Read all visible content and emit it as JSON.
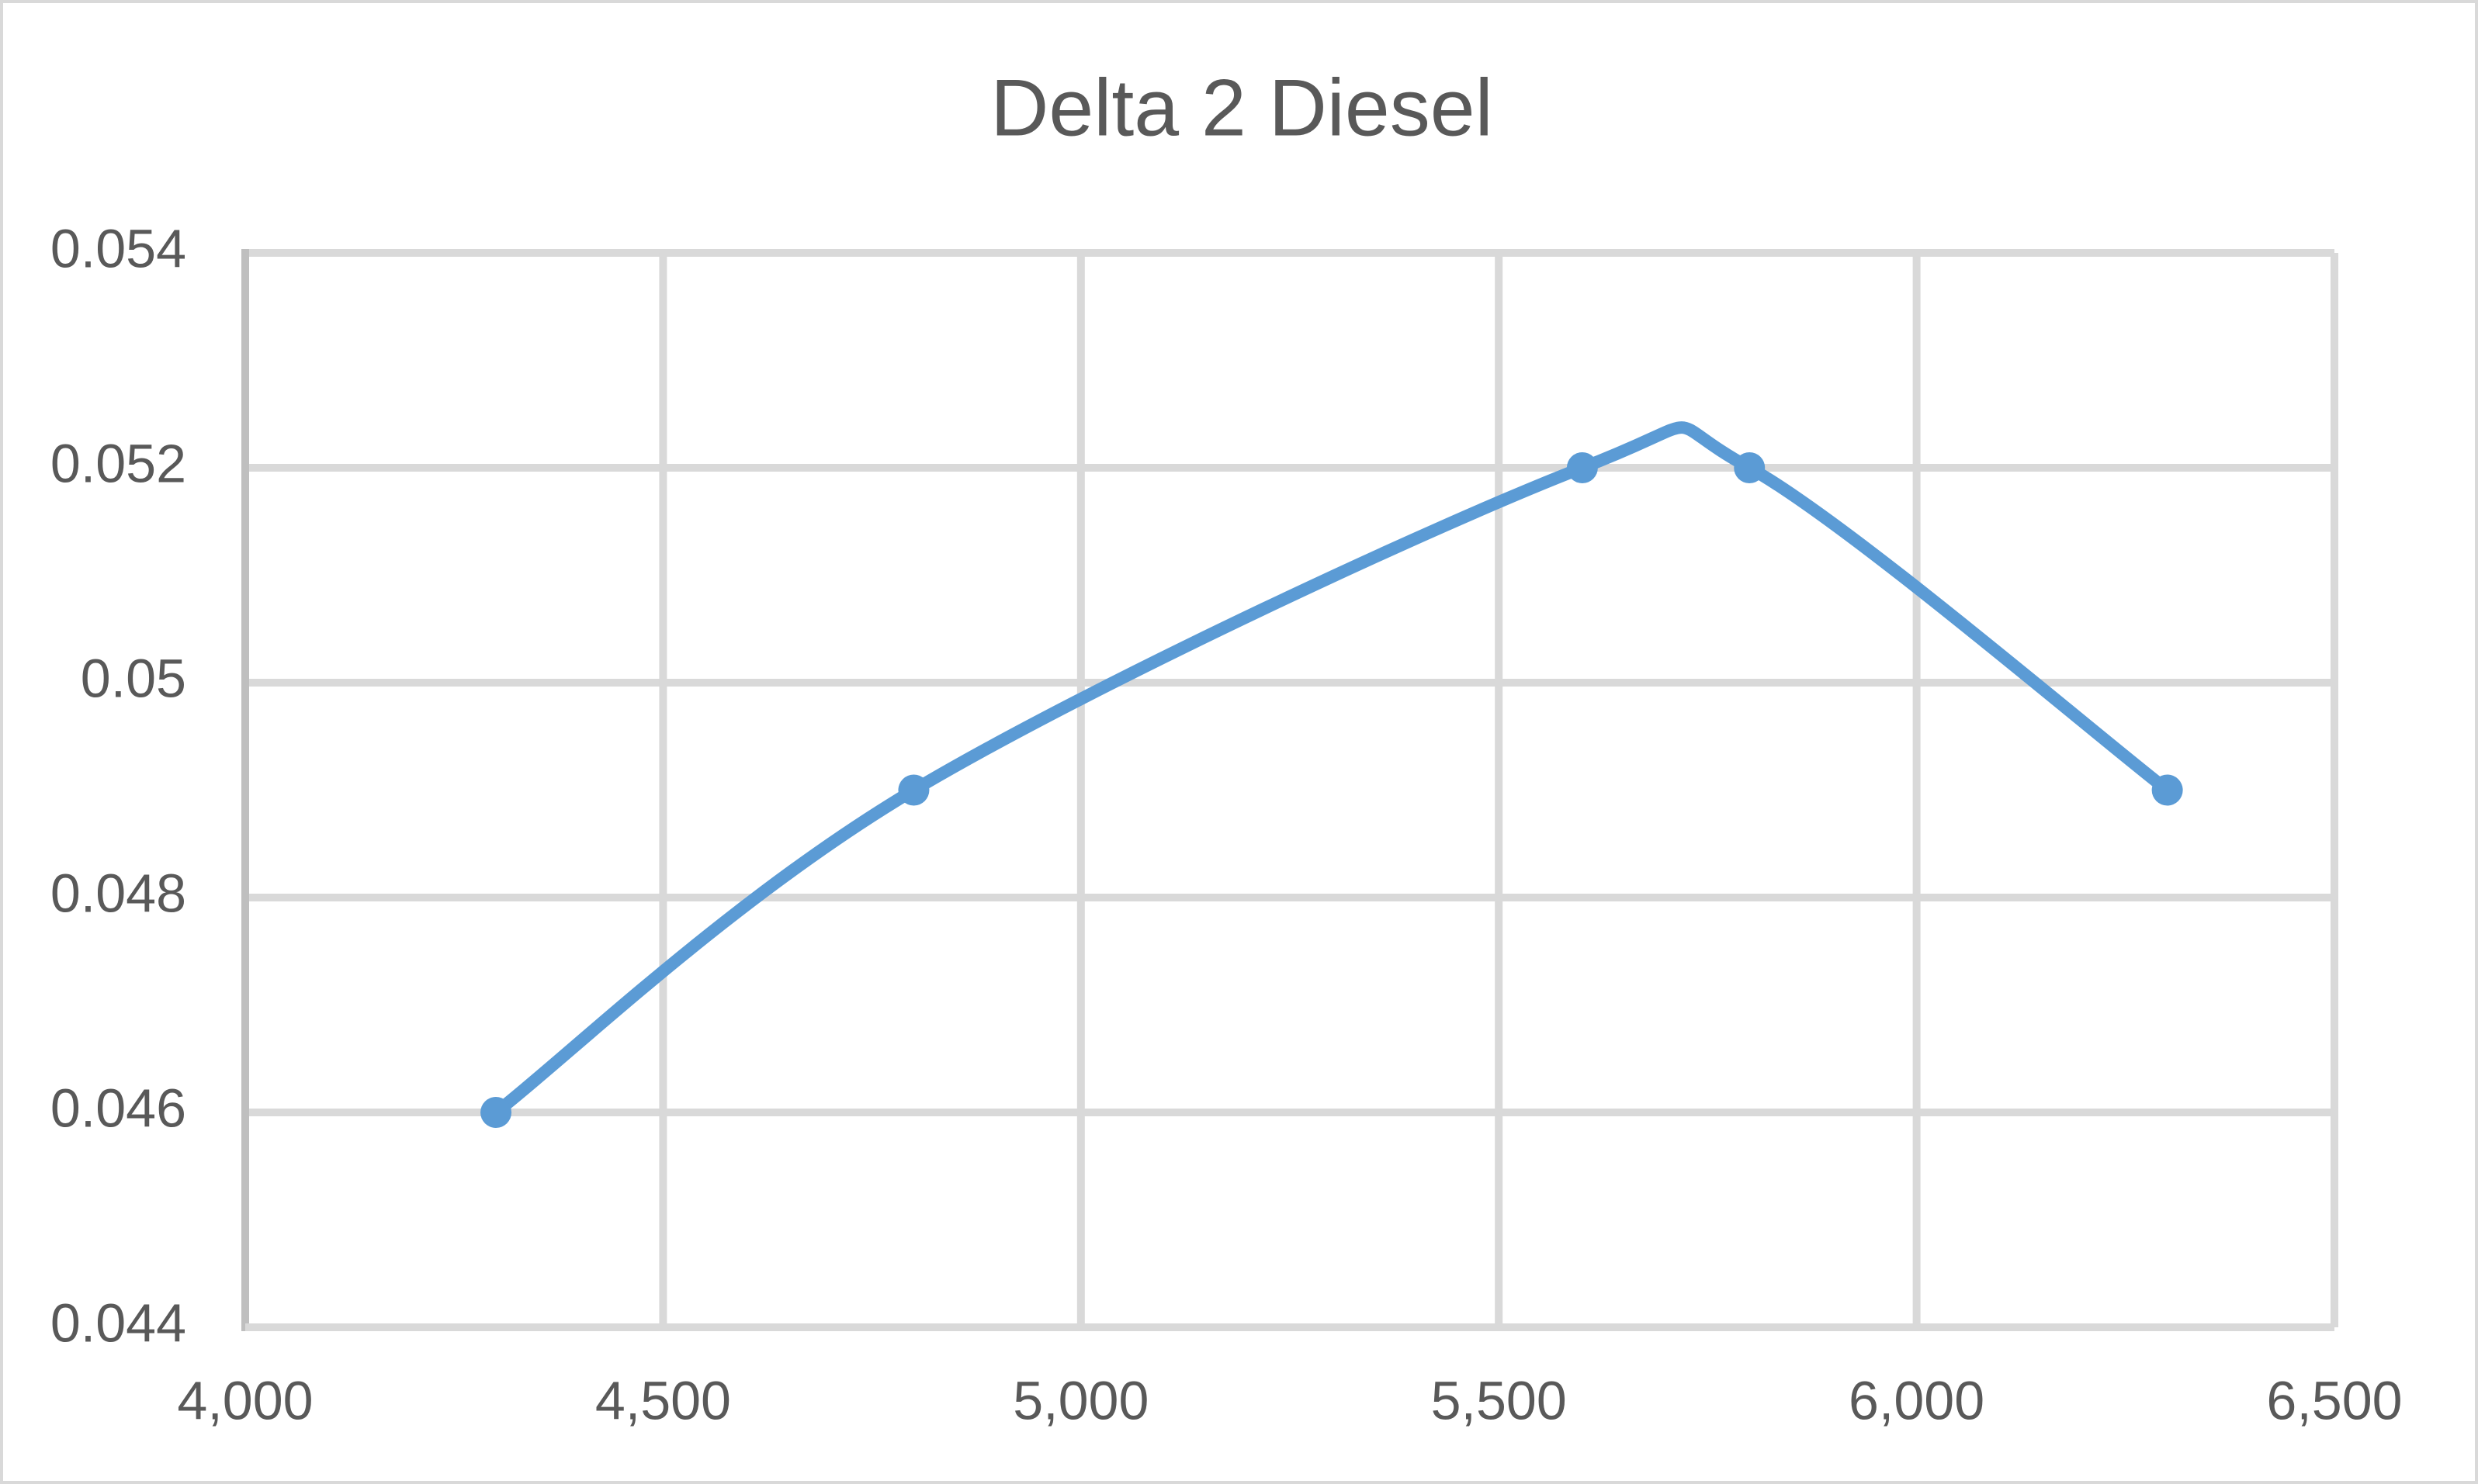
{
  "chart_data": {
    "type": "line",
    "title": "Delta 2 Diesel",
    "x": [
      4300,
      4800,
      5600,
      5800,
      6300
    ],
    "series": [
      {
        "name": "Delta 2 Diesel",
        "color": "#5b9bd5",
        "values": [
          0.046,
          0.049,
          0.052,
          0.052,
          0.049
        ]
      }
    ],
    "xlim": [
      4000,
      6500
    ],
    "xticks": [
      {
        "value": 4000,
        "label": "4,000"
      },
      {
        "value": 4500,
        "label": "4,500"
      },
      {
        "value": 5000,
        "label": "5,000"
      },
      {
        "value": 5500,
        "label": "5,500"
      },
      {
        "value": 6000,
        "label": "6,000"
      },
      {
        "value": 6500,
        "label": "6,500"
      }
    ],
    "ylim": [
      0.044,
      0.054
    ],
    "yticks": [
      0.044,
      0.046,
      0.048,
      0.05,
      0.052,
      0.054
    ],
    "grid": true,
    "smooth": true
  }
}
